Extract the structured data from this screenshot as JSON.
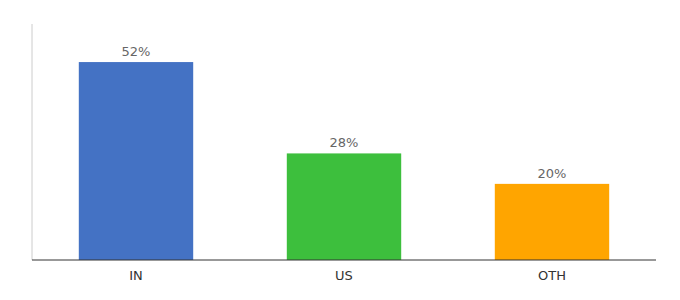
{
  "chart_data": {
    "type": "bar",
    "categories": [
      "IN",
      "US",
      "OTH"
    ],
    "values": [
      52,
      28,
      20
    ],
    "value_labels": [
      "52%",
      "28%",
      "20%"
    ],
    "colors": [
      "#4472C4",
      "#3DBF3D",
      "#FFA500"
    ],
    "ylim": [
      0,
      62
    ],
    "data_labels": true,
    "tick_labels": "x"
  }
}
